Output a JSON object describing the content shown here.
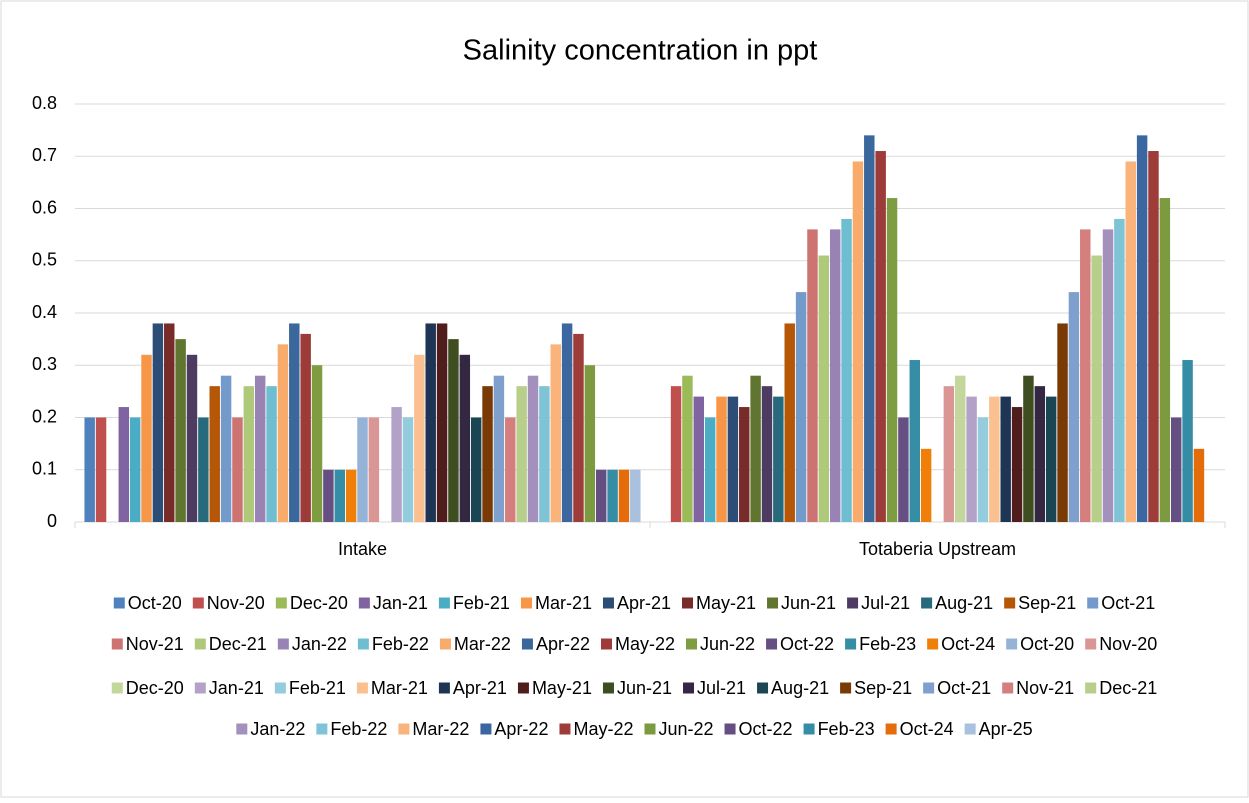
{
  "chart_data": {
    "type": "bar",
    "title": "Salinity concentration in ppt",
    "categories": [
      "Intake",
      "Totaberia Upstream"
    ],
    "ylim": [
      0,
      0.8
    ],
    "yticks": [
      0,
      0.1,
      0.2,
      0.3,
      0.4,
      0.5,
      0.6,
      0.7,
      0.8
    ],
    "grid": true,
    "legend": "bottom",
    "series": [
      {
        "name": "Oct-20",
        "color": "#4f81bd",
        "values": [
          0.2,
          null
        ]
      },
      {
        "name": "Nov-20",
        "color": "#c0504d",
        "values": [
          0.2,
          0.26
        ]
      },
      {
        "name": "Dec-20",
        "color": "#9bbb59",
        "values": [
          null,
          0.28
        ]
      },
      {
        "name": "Jan-21",
        "color": "#8064a2",
        "values": [
          0.22,
          0.24
        ]
      },
      {
        "name": "Feb-21",
        "color": "#4bacc6",
        "values": [
          0.2,
          0.2
        ]
      },
      {
        "name": "Mar-21",
        "color": "#f79646",
        "values": [
          0.32,
          0.24
        ]
      },
      {
        "name": "Apr-21",
        "color": "#2c4d75",
        "values": [
          0.38,
          0.24
        ]
      },
      {
        "name": "May-21",
        "color": "#772c2a",
        "values": [
          0.38,
          0.22
        ]
      },
      {
        "name": "Jun-21",
        "color": "#5f7530",
        "values": [
          0.35,
          0.28
        ]
      },
      {
        "name": "Jul-21",
        "color": "#4d3b62",
        "values": [
          0.32,
          0.26
        ]
      },
      {
        "name": "Aug-21",
        "color": "#276a7c",
        "values": [
          0.2,
          0.24
        ]
      },
      {
        "name": "Sep-21",
        "color": "#b65708",
        "values": [
          0.26,
          0.38
        ]
      },
      {
        "name": "Oct-21",
        "color": "#729aca",
        "values": [
          0.28,
          0.44
        ]
      },
      {
        "name": "Nov-21",
        "color": "#cd7371",
        "values": [
          0.2,
          0.56
        ]
      },
      {
        "name": "Dec-21",
        "color": "#afc97a",
        "values": [
          0.26,
          0.51
        ]
      },
      {
        "name": "Jan-22",
        "color": "#9983b5",
        "values": [
          0.28,
          0.56
        ]
      },
      {
        "name": "Feb-22",
        "color": "#6fbdd1",
        "values": [
          0.26,
          0.58
        ]
      },
      {
        "name": "Mar-22",
        "color": "#f9ab6b",
        "values": [
          0.34,
          0.69
        ]
      },
      {
        "name": "Apr-22",
        "color": "#3a679c",
        "values": [
          0.38,
          0.74
        ]
      },
      {
        "name": "May-22",
        "color": "#9d3b38",
        "values": [
          0.36,
          0.71
        ]
      },
      {
        "name": "Jun-22",
        "color": "#7e9c40",
        "values": [
          0.3,
          0.62
        ]
      },
      {
        "name": "Oct-22",
        "color": "#664f83",
        "values": [
          0.1,
          0.2
        ]
      },
      {
        "name": "Feb-23",
        "color": "#358ea6",
        "values": [
          0.1,
          0.31
        ]
      },
      {
        "name": "Oct-24",
        "color": "#f07f09",
        "values": [
          0.1,
          0.14
        ]
      },
      {
        "name": "Oct-20",
        "color": "#95b3d7",
        "values": [
          0.2,
          null
        ]
      },
      {
        "name": "Nov-20",
        "color": "#d99694",
        "values": [
          0.2,
          0.26
        ]
      },
      {
        "name": "Dec-20",
        "color": "#c3d69b",
        "values": [
          null,
          0.28
        ]
      },
      {
        "name": "Jan-21",
        "color": "#b3a2c7",
        "values": [
          0.22,
          0.24
        ]
      },
      {
        "name": "Feb-21",
        "color": "#93cddd",
        "values": [
          0.2,
          0.2
        ]
      },
      {
        "name": "Mar-21",
        "color": "#fac090",
        "values": [
          0.32,
          0.24
        ]
      },
      {
        "name": "Apr-21",
        "color": "#1f3555",
        "values": [
          0.38,
          0.24
        ]
      },
      {
        "name": "May-21",
        "color": "#4f1d1c",
        "values": [
          0.38,
          0.22
        ]
      },
      {
        "name": "Jun-21",
        "color": "#3f4e20",
        "values": [
          0.35,
          0.28
        ]
      },
      {
        "name": "Jul-21",
        "color": "#332741",
        "values": [
          0.32,
          0.26
        ]
      },
      {
        "name": "Aug-21",
        "color": "#1a4653",
        "values": [
          0.2,
          0.24
        ]
      },
      {
        "name": "Sep-21",
        "color": "#7a3a05",
        "values": [
          0.26,
          0.38
        ]
      },
      {
        "name": "Oct-21",
        "color": "#7f9fcc",
        "values": [
          0.28,
          0.44
        ]
      },
      {
        "name": "Nov-21",
        "color": "#d47f7d",
        "values": [
          0.2,
          0.56
        ]
      },
      {
        "name": "Dec-21",
        "color": "#b8cf8b",
        "values": [
          0.26,
          0.51
        ]
      },
      {
        "name": "Jan-22",
        "color": "#a390bc",
        "values": [
          0.28,
          0.56
        ]
      },
      {
        "name": "Feb-22",
        "color": "#7ec4d6",
        "values": [
          0.26,
          0.58
        ]
      },
      {
        "name": "Mar-22",
        "color": "#f9b37b",
        "values": [
          0.34,
          0.69
        ]
      },
      {
        "name": "Apr-22",
        "color": "#3b66a0",
        "values": [
          0.38,
          0.74
        ]
      },
      {
        "name": "May-22",
        "color": "#9e3c39",
        "values": [
          0.36,
          0.71
        ]
      },
      {
        "name": "Jun-22",
        "color": "#7c9a40",
        "values": [
          0.3,
          0.62
        ]
      },
      {
        "name": "Oct-22",
        "color": "#654f82",
        "values": [
          0.1,
          0.2
        ]
      },
      {
        "name": "Feb-23",
        "color": "#348da5",
        "values": [
          0.1,
          0.31
        ]
      },
      {
        "name": "Oct-24",
        "color": "#e46c0a",
        "values": [
          0.1,
          0.14
        ]
      },
      {
        "name": "Apr-25",
        "color": "#a9c0de",
        "values": [
          0.1,
          null
        ]
      }
    ]
  }
}
